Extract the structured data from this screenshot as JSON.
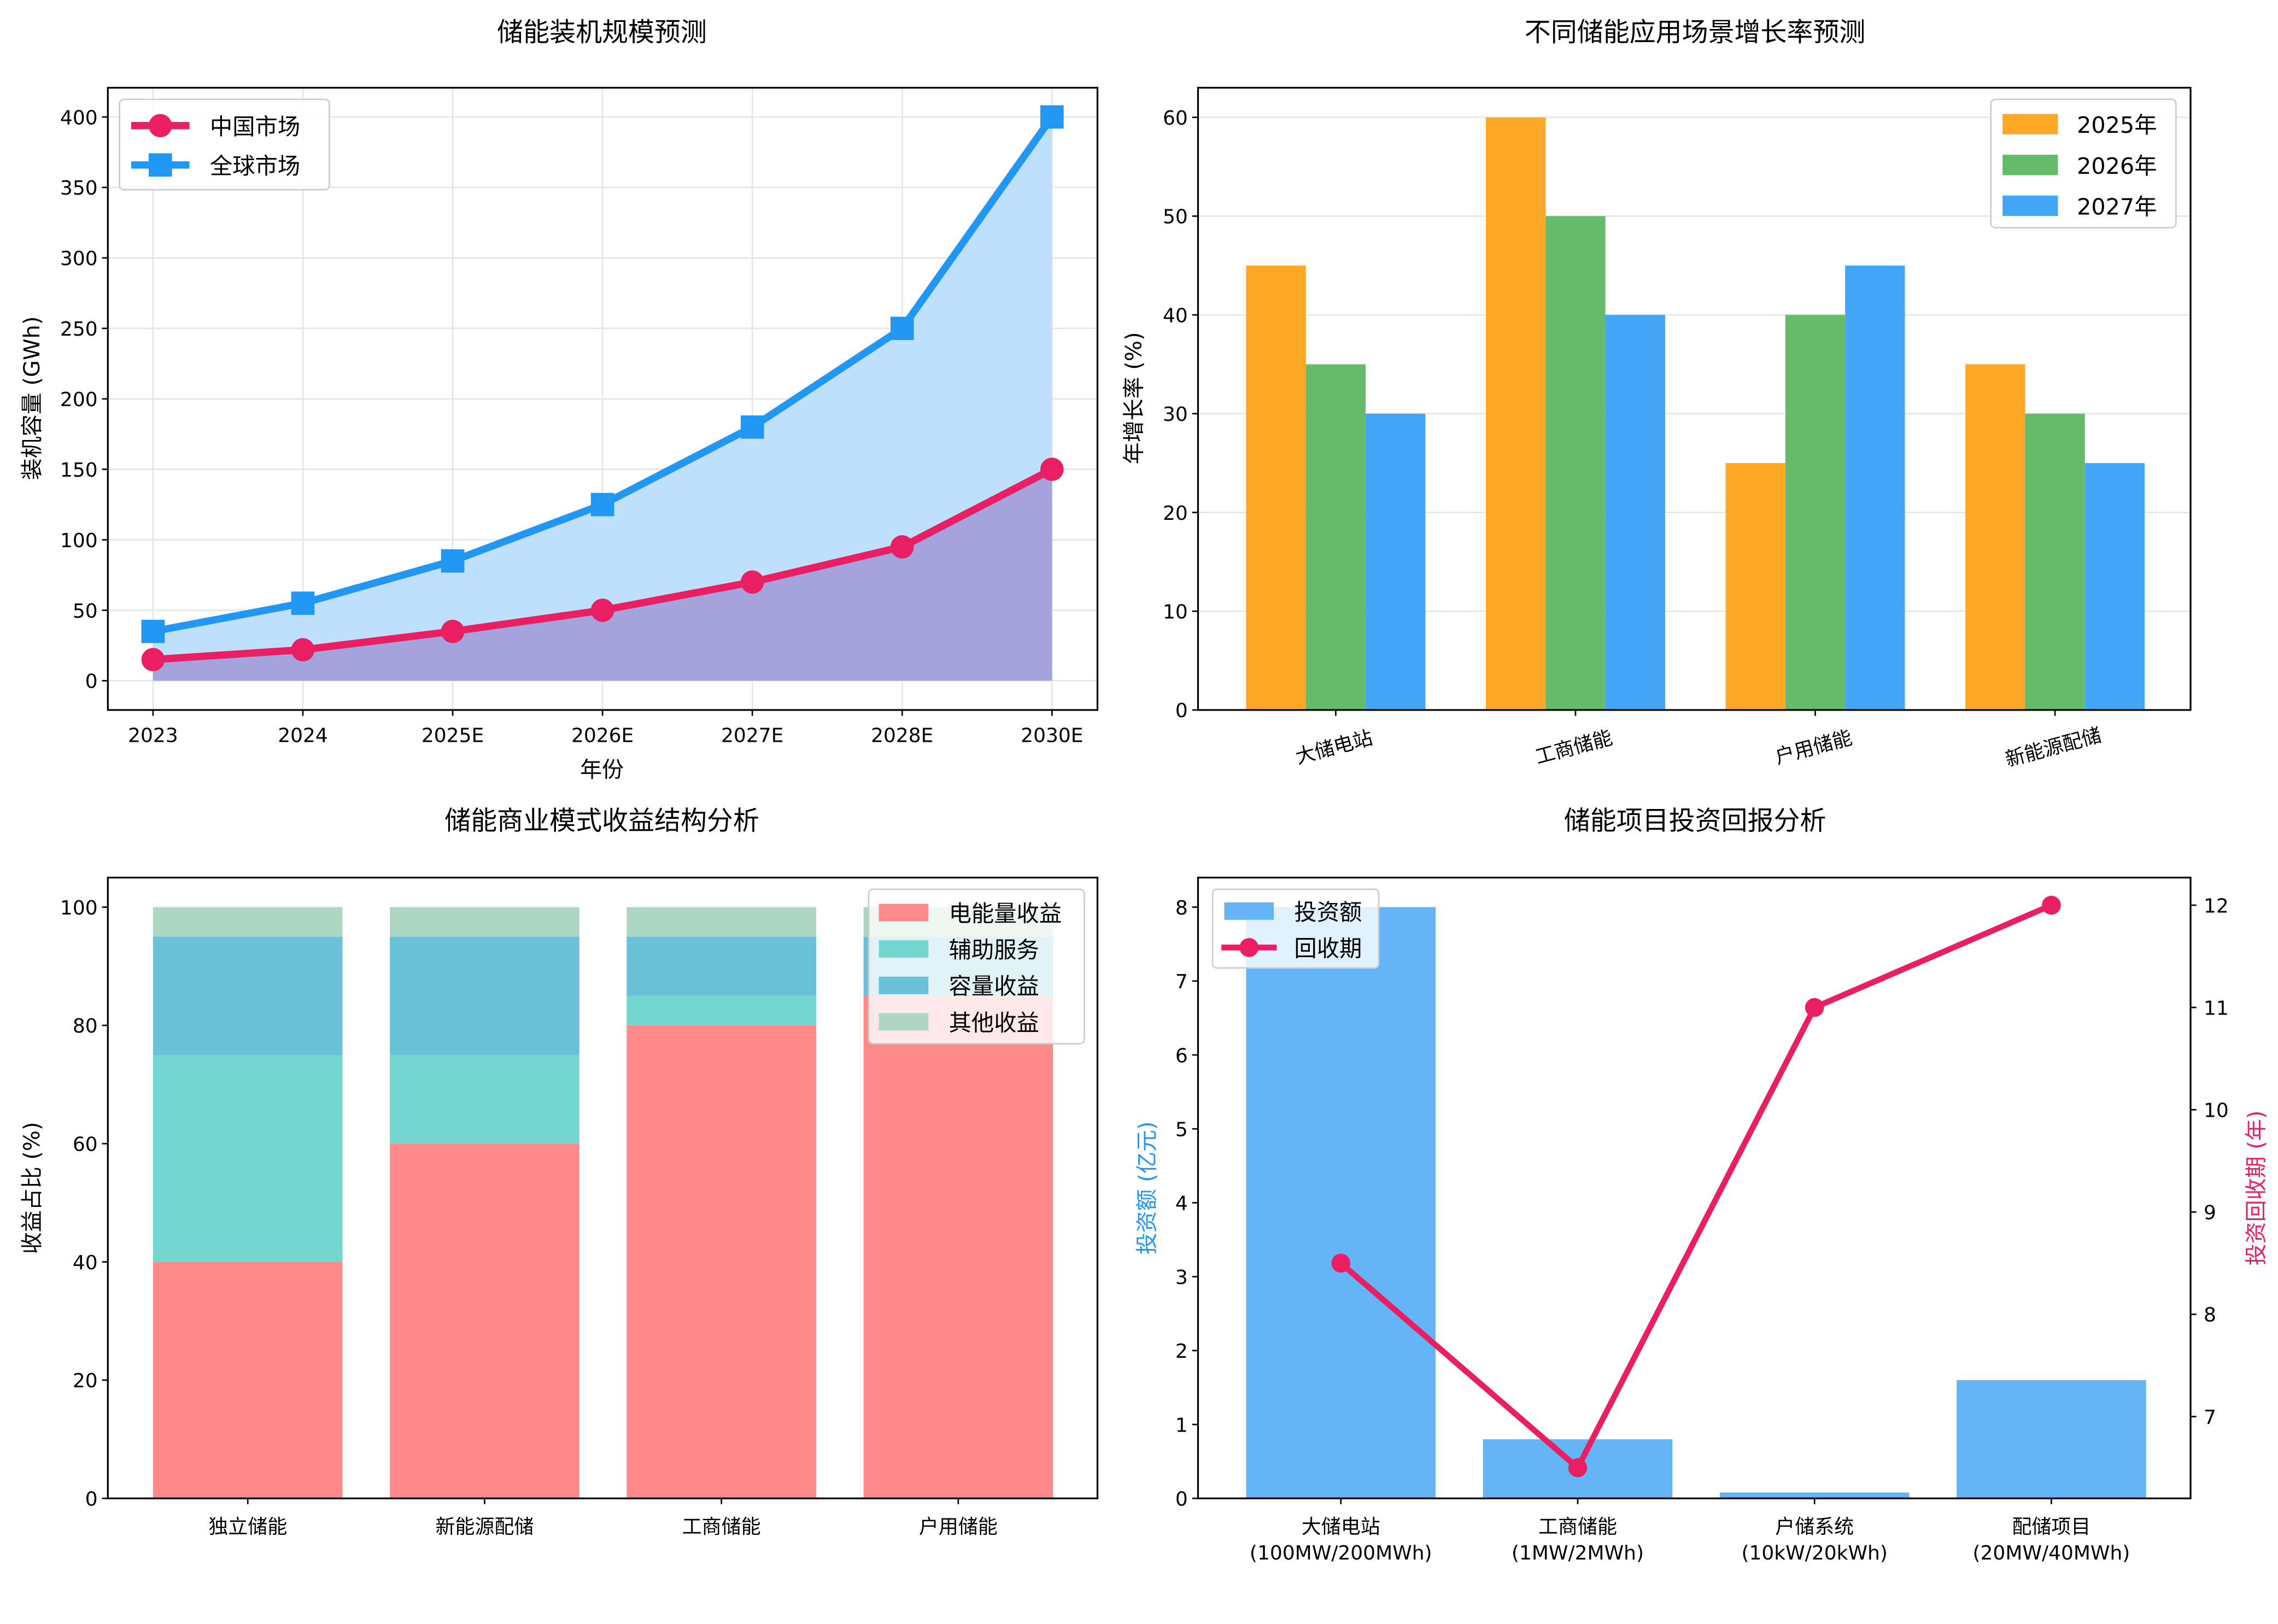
{
  "chart_data": [
    {
      "type": "line",
      "title": "储能装机规模预测",
      "xlabel": "年份",
      "ylabel": "装机容量 (GWh)",
      "categories": [
        "2023",
        "2024",
        "2025E",
        "2026E",
        "2027E",
        "2028E",
        "2030E"
      ],
      "ylim": [
        -20.75,
        420.75
      ],
      "yticks": [
        0,
        50,
        100,
        150,
        200,
        250,
        300,
        350,
        400
      ],
      "grid": true,
      "legend": "upper-left",
      "series": [
        {
          "name": "中国市场",
          "values": [
            15,
            22,
            35,
            50,
            70,
            95,
            150
          ],
          "color": "#e91e63",
          "marker": "circle",
          "fill": "#9c8fd0"
        },
        {
          "name": "全球市场",
          "values": [
            35,
            55,
            85,
            125,
            180,
            250,
            400
          ],
          "color": "#2196f3",
          "marker": "square",
          "fill": "#bbdefb"
        }
      ]
    },
    {
      "type": "bar",
      "title": "不同储能应用场景增长率预测",
      "xlabel": "",
      "ylabel": "年增长率 (%)",
      "categories": [
        "大储电站",
        "工商储能",
        "户用储能",
        "新能源配储"
      ],
      "ylim": [
        0,
        63
      ],
      "yticks": [
        0,
        10,
        20,
        30,
        40,
        50,
        60
      ],
      "grid": true,
      "legend": "upper-right",
      "series": [
        {
          "name": "2025年",
          "values": [
            45,
            60,
            25,
            35
          ],
          "color": "#ffa726"
        },
        {
          "name": "2026年",
          "values": [
            35,
            50,
            40,
            30
          ],
          "color": "#66bb6a"
        },
        {
          "name": "2027年",
          "values": [
            30,
            40,
            45,
            25
          ],
          "color": "#42a5f5"
        }
      ]
    },
    {
      "type": "bar",
      "stacked": true,
      "title": "储能商业模式收益结构分析",
      "xlabel": "",
      "ylabel": "收益占比 (%)",
      "categories": [
        "独立储能",
        "新能源配储",
        "工商储能",
        "户用储能"
      ],
      "ylim": [
        0,
        105
      ],
      "yticks": [
        0,
        20,
        40,
        60,
        80,
        100
      ],
      "legend": "upper-right",
      "series": [
        {
          "name": "电能量收益",
          "values": [
            40,
            60,
            80,
            85
          ],
          "color": "#ff8a8a"
        },
        {
          "name": "辅助服务",
          "values": [
            35,
            15,
            5,
            0
          ],
          "color": "#74d6cf"
        },
        {
          "name": "容量收益",
          "values": [
            20,
            20,
            10,
            10
          ],
          "color": "#69c2d8"
        },
        {
          "name": "其他收益",
          "values": [
            5,
            5,
            5,
            5
          ],
          "color": "#aed7c3"
        }
      ]
    },
    {
      "type": "bar+line",
      "title": "储能项目投资回报分析",
      "ylabel": "投资额 (亿元)",
      "ylabel_right": "投资回收期 (年)",
      "categories": [
        "大储电站\n(100MW/200MWh)",
        "工商储能\n(1MW/2MWh)",
        "户储系统\n(10kW/20kWh)",
        "配储项目\n(20MW/40MWh)"
      ],
      "ylim": [
        0,
        8.4
      ],
      "yticks": [
        0,
        1,
        2,
        3,
        4,
        5,
        6,
        7,
        8
      ],
      "ylim_right": [
        6.2,
        12.27
      ],
      "yticks_right": [
        7,
        8,
        9,
        10,
        11,
        12
      ],
      "legend": "upper-left",
      "bar": {
        "name": "投资额",
        "values": [
          8,
          0.8,
          0.08,
          1.6
        ],
        "color": "#64b5f6"
      },
      "line": {
        "name": "回收期",
        "values": [
          8.5,
          6.5,
          11,
          12
        ],
        "color": "#e91e63"
      }
    }
  ]
}
